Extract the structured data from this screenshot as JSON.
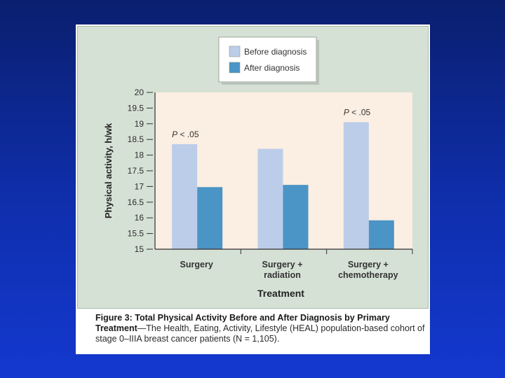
{
  "chart_data": {
    "type": "bar",
    "categories": [
      [
        "Surgery"
      ],
      [
        "Surgery +",
        "radiation"
      ],
      [
        "Surgery +",
        "chemotherapy"
      ]
    ],
    "series": [
      {
        "name": "Before diagnosis",
        "color": "#bccde9",
        "values": [
          18.35,
          18.2,
          19.05
        ]
      },
      {
        "name": "After diagnosis",
        "color": "#4a94c6",
        "values": [
          16.98,
          17.05,
          15.92
        ]
      }
    ],
    "ylabel": "Physical activity, h/wk",
    "xlabel": "Treatment",
    "ylim": [
      15,
      20
    ],
    "yticks": [
      "15",
      "15.5",
      "16",
      "16.5",
      "17",
      "17.5",
      "18",
      "18.5",
      "19",
      "19.5",
      "20"
    ],
    "annotations": [
      {
        "text": "P < .05",
        "category": 0
      },
      {
        "text": "P < .05",
        "category": 2
      }
    ],
    "legend_position": "top-center",
    "plot_background": "#fbeee2"
  },
  "caption": {
    "bold": "Figure 3: Total Physical Activity Before and After Diagnosis by Primary Treatment",
    "text": "—The Health, Eating, Activity, Lifestyle (HEAL) population-based cohort of stage 0–IIIA breast cancer patients (N = 1,105)."
  }
}
